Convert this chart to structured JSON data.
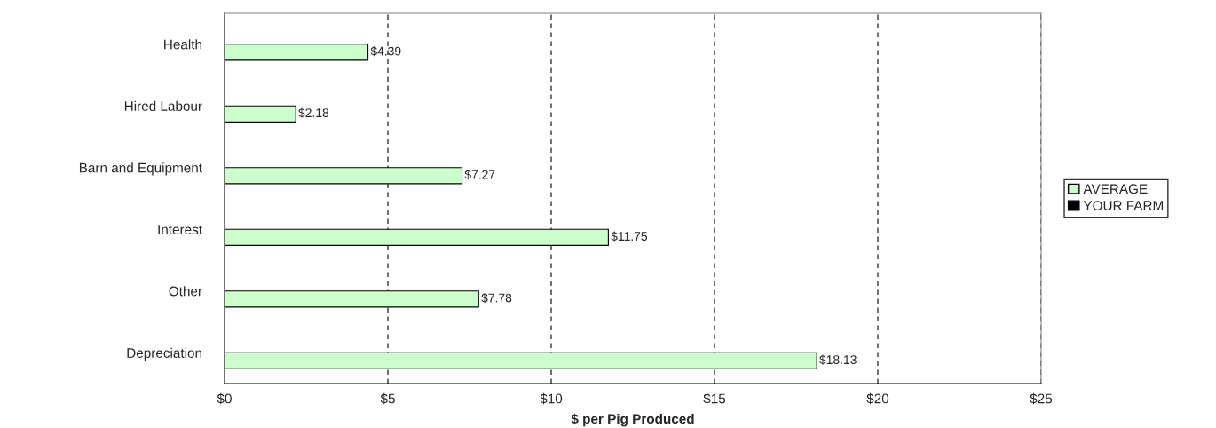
{
  "chart_data": {
    "type": "bar",
    "orientation": "horizontal",
    "xlabel": "$ per Pig Produced",
    "categories": [
      "Health",
      "Hired Labour",
      "Barn and Equipment",
      "Interest",
      "Other",
      "Depreciation"
    ],
    "series": [
      {
        "name": "AVERAGE",
        "color": "#ccffcc",
        "values": [
          4.39,
          2.18,
          7.27,
          11.75,
          7.78,
          18.13
        ],
        "value_labels": [
          "$4.39",
          "$2.18",
          "$7.27",
          "$11.75",
          "$7.78",
          "$18.13"
        ]
      },
      {
        "name": "YOUR FARM",
        "color": "#000000",
        "values": [
          null,
          null,
          null,
          null,
          null,
          null
        ]
      }
    ],
    "xlim": [
      0,
      25
    ],
    "xticks": [
      {
        "value": 0,
        "label": "$0"
      },
      {
        "value": 5,
        "label": "$5"
      },
      {
        "value": 10,
        "label": "$10"
      },
      {
        "value": 15,
        "label": "$15"
      },
      {
        "value": 20,
        "label": "$20"
      },
      {
        "value": 25,
        "label": "$25"
      }
    ],
    "grid": "x",
    "legend": "right"
  }
}
